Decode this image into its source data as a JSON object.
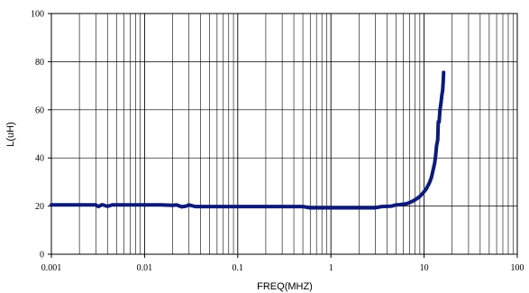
{
  "chart_data": {
    "type": "line",
    "xlabel": "FREQ(MHZ)",
    "ylabel": "L(uH)",
    "x_scale": "log",
    "xlim": [
      0.001,
      100
    ],
    "ylim": [
      0,
      100
    ],
    "x_tick_labels": [
      "0.001",
      "0.01",
      "0.1",
      "1",
      "10",
      "100"
    ],
    "x_tick_values": [
      0.001,
      0.01,
      0.1,
      1,
      10,
      100
    ],
    "y_tick_labels": [
      "0",
      "20",
      "40",
      "60",
      "80",
      "100"
    ],
    "y_tick_values": [
      0,
      20,
      40,
      60,
      80,
      100
    ],
    "grid": true,
    "line_color": "#0d1a7a",
    "series": [
      {
        "x": [
          0.001,
          0.002,
          0.003,
          0.0032,
          0.0035,
          0.004,
          0.0045,
          0.01,
          0.015,
          0.02,
          0.022,
          0.025,
          0.028,
          0.03,
          0.035,
          0.05,
          0.1,
          0.2,
          0.4,
          0.5,
          0.6,
          1,
          2,
          3,
          3.5,
          4,
          4.5,
          5,
          5.5,
          6,
          6.5,
          7,
          7.5,
          8,
          8.5,
          9,
          9.5,
          10,
          10.5,
          11,
          11.5,
          12,
          12.5,
          13,
          13.3,
          13.6,
          14,
          14.2,
          14.5,
          14.8,
          15.2,
          15.5,
          15.8,
          16,
          16.2
        ],
        "y": [
          20.5,
          20.5,
          20.5,
          19.8,
          20.6,
          19.9,
          20.5,
          20.5,
          20.5,
          20.3,
          20.5,
          19.7,
          20.0,
          20.5,
          19.8,
          19.8,
          19.8,
          19.8,
          19.8,
          19.8,
          19.3,
          19.3,
          19.3,
          19.3,
          19.8,
          19.9,
          20.0,
          20.5,
          20.6,
          20.8,
          21.0,
          21.5,
          22.0,
          22.6,
          23.3,
          24.0,
          25.0,
          26.0,
          27.0,
          28.5,
          30.0,
          32.0,
          35.0,
          38.0,
          41.0,
          45.0,
          47.5,
          55.0,
          55.0,
          60.0,
          63.0,
          66.0,
          68.0,
          71.0,
          75.5
        ]
      }
    ]
  }
}
